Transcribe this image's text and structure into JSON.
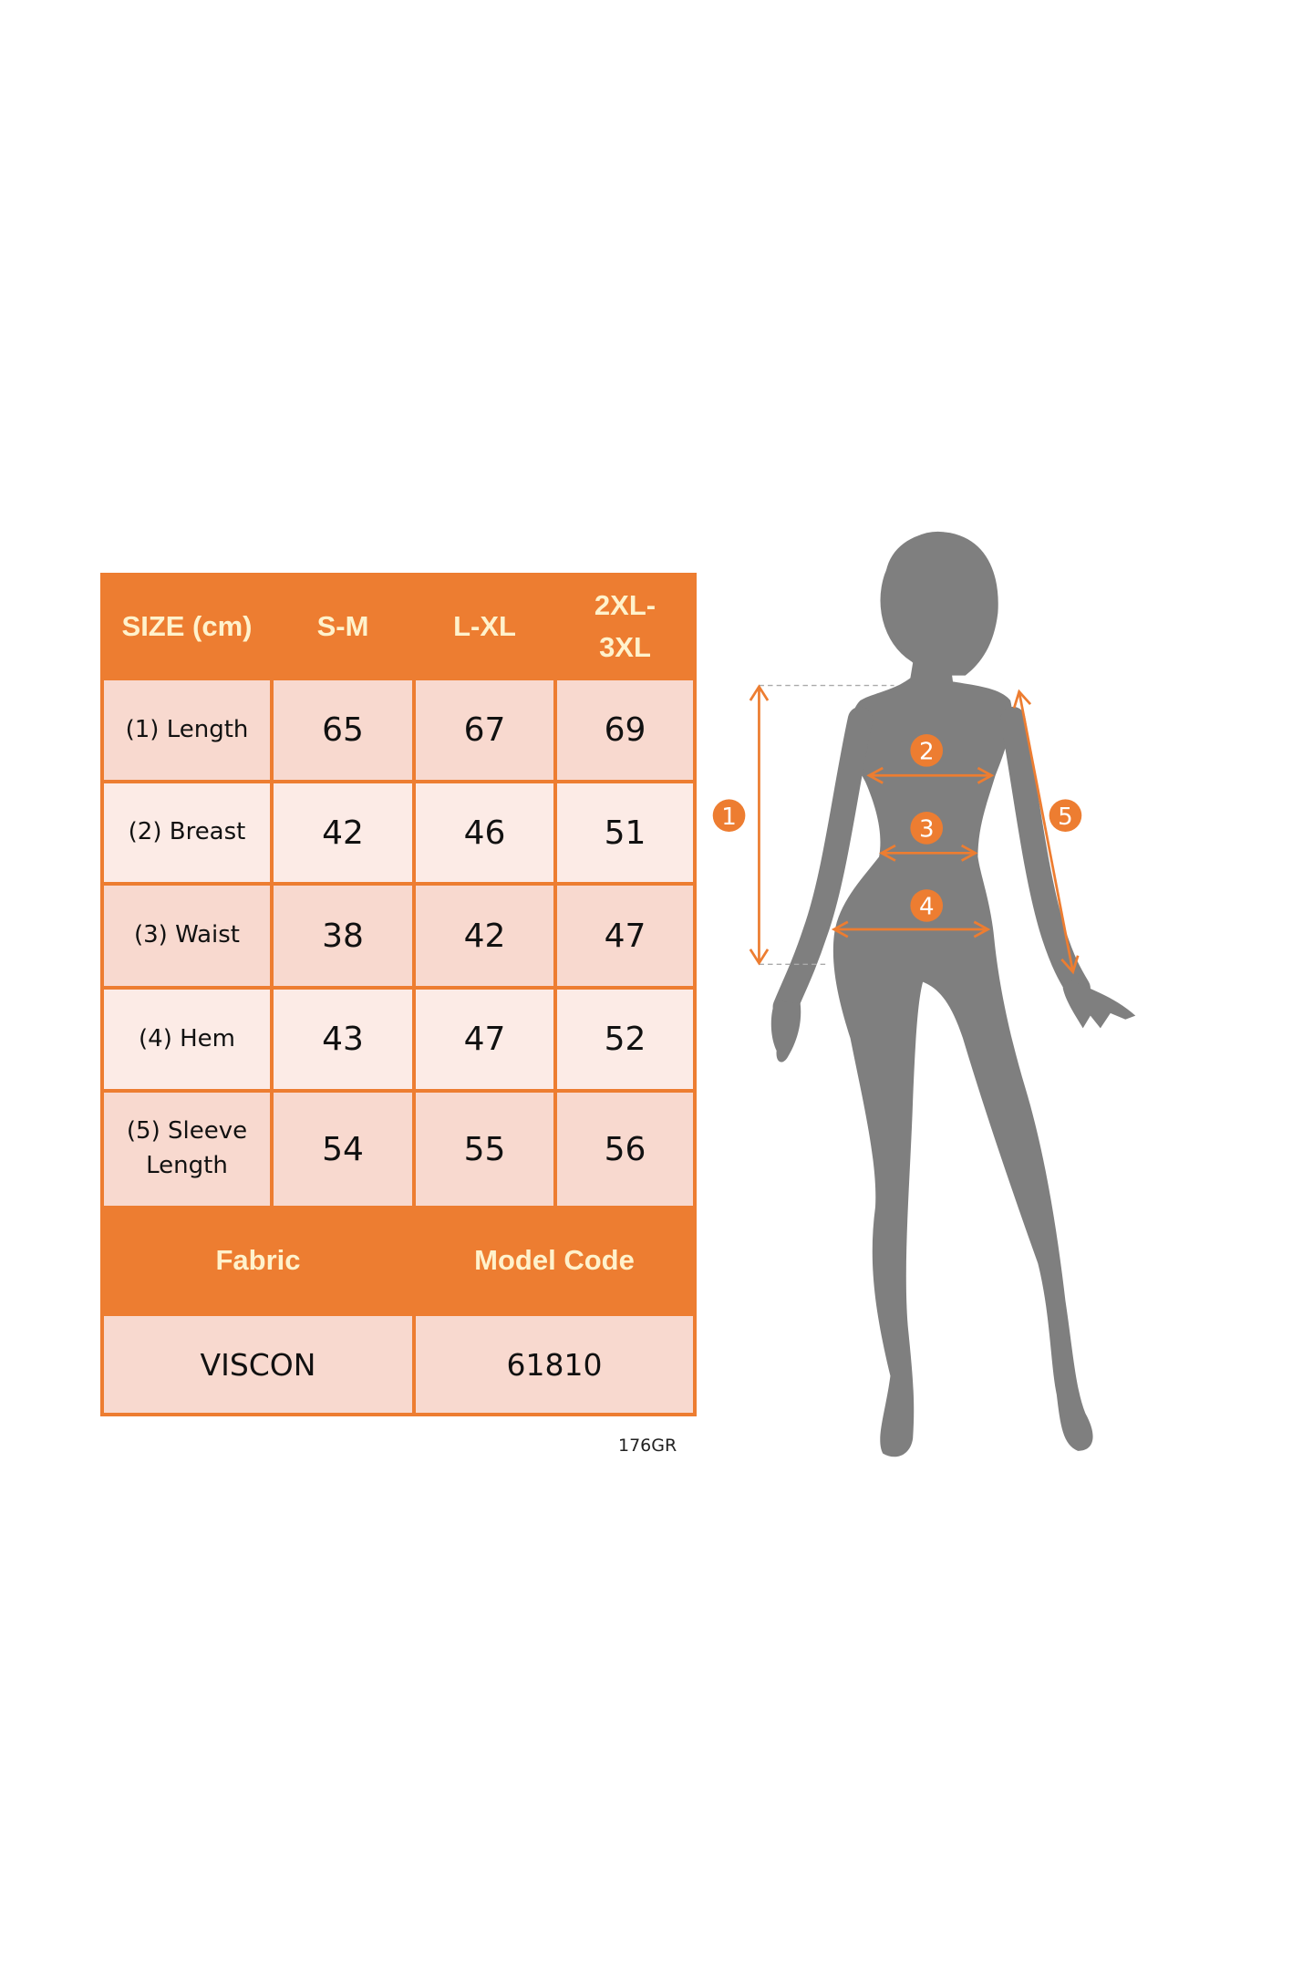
{
  "size_table": {
    "header": {
      "corner": "SIZE (cm)",
      "sizes": [
        "S-M",
        "L-XL",
        "2XL-3XL"
      ]
    },
    "rows": [
      {
        "label": "(1) Length",
        "values": [
          "65",
          "67",
          "69"
        ]
      },
      {
        "label": "(2) Breast",
        "values": [
          "42",
          "46",
          "51"
        ]
      },
      {
        "label": "(3) Waist",
        "values": [
          "38",
          "42",
          "47"
        ]
      },
      {
        "label": "(4) Hem",
        "values": [
          "43",
          "47",
          "52"
        ]
      },
      {
        "label": "(5) Sleeve Length",
        "values": [
          "54",
          "55",
          "56"
        ]
      }
    ],
    "footer": {
      "fabric_label": "Fabric",
      "model_code_label": "Model Code",
      "fabric_value": "VISCON",
      "model_code_value": "61810"
    }
  },
  "code_note": "176GR",
  "figure": {
    "markers": [
      "1",
      "2",
      "3",
      "4",
      "5"
    ],
    "colors": {
      "accent": "#ED7D31",
      "silhouette": "#7F7F7F",
      "header_text": "#FFF2CC"
    }
  }
}
